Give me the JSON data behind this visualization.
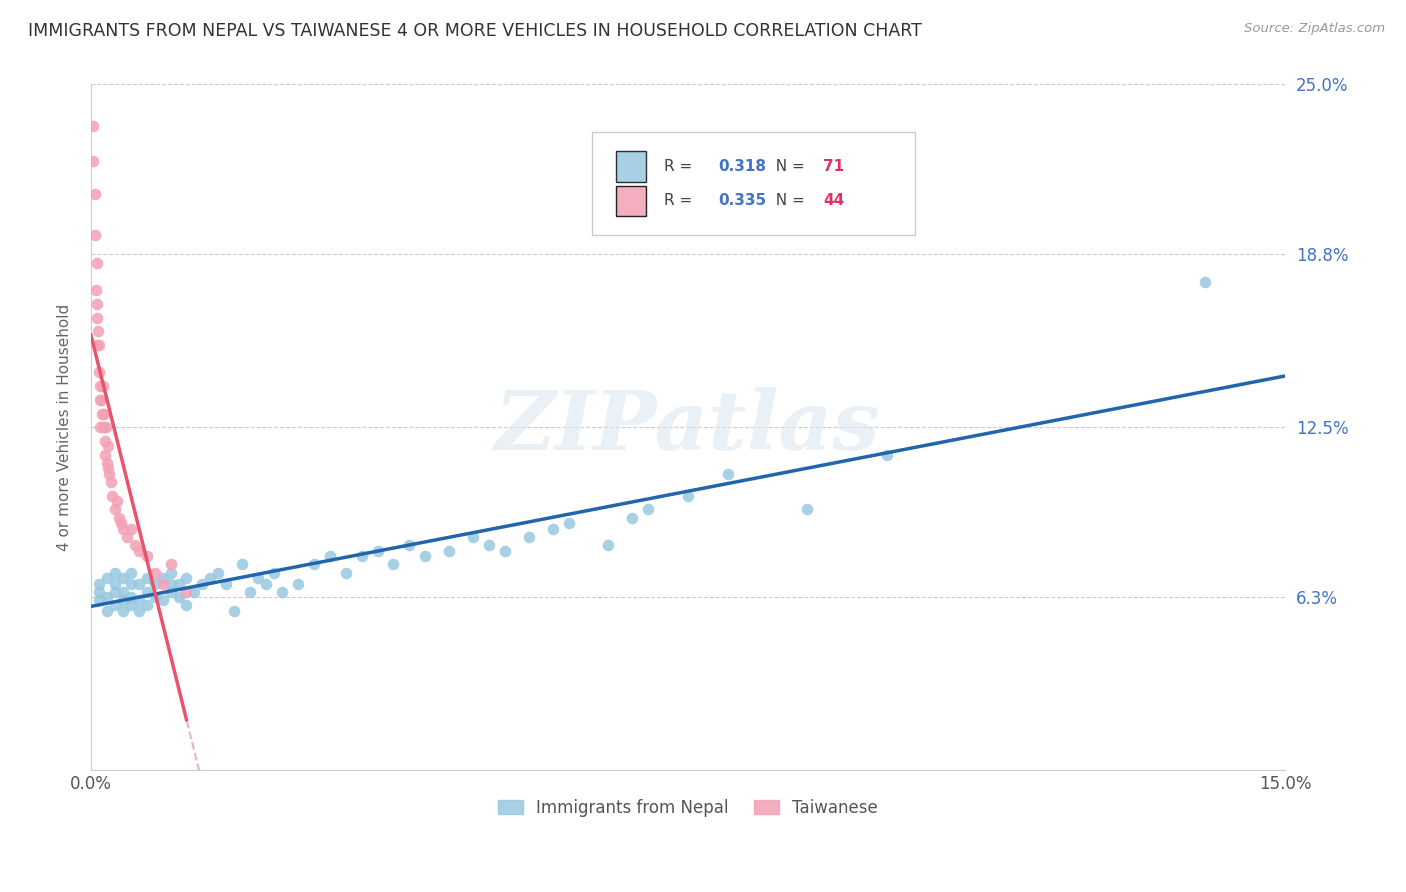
{
  "title": "IMMIGRANTS FROM NEPAL VS TAIWANESE 4 OR MORE VEHICLES IN HOUSEHOLD CORRELATION CHART",
  "source": "Source: ZipAtlas.com",
  "ylabel": "4 or more Vehicles in Household",
  "R1": "0.318",
  "N1": "71",
  "R2": "0.335",
  "N2": "44",
  "color_nepal": "#92c5de",
  "color_taiwanese": "#f4a0b5",
  "regression_color_nepal": "#2166ac",
  "regression_color_taiwanese": "#e8556a",
  "regression_dashed_color": "#f0b0c0",
  "nepal_x": [
    0.001,
    0.001,
    0.001,
    0.002,
    0.002,
    0.002,
    0.003,
    0.003,
    0.003,
    0.003,
    0.004,
    0.004,
    0.004,
    0.004,
    0.005,
    0.005,
    0.005,
    0.005,
    0.006,
    0.006,
    0.006,
    0.007,
    0.007,
    0.007,
    0.008,
    0.008,
    0.009,
    0.009,
    0.01,
    0.01,
    0.01,
    0.011,
    0.011,
    0.012,
    0.012,
    0.013,
    0.014,
    0.015,
    0.016,
    0.017,
    0.018,
    0.019,
    0.02,
    0.021,
    0.022,
    0.023,
    0.024,
    0.026,
    0.028,
    0.03,
    0.032,
    0.034,
    0.036,
    0.038,
    0.04,
    0.042,
    0.045,
    0.048,
    0.05,
    0.052,
    0.055,
    0.058,
    0.06,
    0.065,
    0.068,
    0.07,
    0.075,
    0.08,
    0.09,
    0.1,
    0.14
  ],
  "nepal_y": [
    0.062,
    0.065,
    0.068,
    0.058,
    0.063,
    0.07,
    0.06,
    0.065,
    0.068,
    0.072,
    0.058,
    0.062,
    0.065,
    0.07,
    0.06,
    0.063,
    0.068,
    0.072,
    0.058,
    0.062,
    0.068,
    0.06,
    0.065,
    0.07,
    0.063,
    0.068,
    0.062,
    0.07,
    0.065,
    0.068,
    0.072,
    0.063,
    0.068,
    0.06,
    0.07,
    0.065,
    0.068,
    0.07,
    0.072,
    0.068,
    0.058,
    0.075,
    0.065,
    0.07,
    0.068,
    0.072,
    0.065,
    0.068,
    0.075,
    0.078,
    0.072,
    0.078,
    0.08,
    0.075,
    0.082,
    0.078,
    0.08,
    0.085,
    0.082,
    0.08,
    0.085,
    0.088,
    0.09,
    0.082,
    0.092,
    0.095,
    0.1,
    0.108,
    0.095,
    0.115,
    0.178
  ],
  "taiwanese_x": [
    0.0002,
    0.0003,
    0.0005,
    0.0005,
    0.0006,
    0.0007,
    0.0007,
    0.0008,
    0.0008,
    0.0009,
    0.001,
    0.001,
    0.0011,
    0.0012,
    0.0012,
    0.0013,
    0.0014,
    0.0015,
    0.0015,
    0.0016,
    0.0017,
    0.0018,
    0.0018,
    0.0019,
    0.002,
    0.0021,
    0.0022,
    0.0023,
    0.0025,
    0.0027,
    0.003,
    0.0033,
    0.0035,
    0.0038,
    0.004,
    0.0045,
    0.005,
    0.0055,
    0.006,
    0.007,
    0.008,
    0.009,
    0.01,
    0.012
  ],
  "taiwanese_y": [
    0.235,
    0.222,
    0.195,
    0.21,
    0.175,
    0.185,
    0.165,
    0.155,
    0.17,
    0.16,
    0.155,
    0.145,
    0.125,
    0.14,
    0.135,
    0.135,
    0.13,
    0.125,
    0.14,
    0.13,
    0.125,
    0.115,
    0.12,
    0.125,
    0.112,
    0.118,
    0.11,
    0.108,
    0.105,
    0.1,
    0.095,
    0.098,
    0.092,
    0.09,
    0.088,
    0.085,
    0.088,
    0.082,
    0.08,
    0.078,
    0.072,
    0.068,
    0.075,
    0.065
  ],
  "xlim": [
    0,
    0.15
  ],
  "ylim": [
    0,
    0.25
  ],
  "ytick_vals": [
    0.063,
    0.125,
    0.188,
    0.25
  ],
  "ytick_labels": [
    "6.3%",
    "12.5%",
    "18.8%",
    "25.0%"
  ],
  "xtick_vals": [
    0.0,
    0.15
  ],
  "xtick_labels": [
    "0.0%",
    "15.0%"
  ],
  "legend1_label": "Immigrants from Nepal",
  "legend2_label": "Taiwanese"
}
